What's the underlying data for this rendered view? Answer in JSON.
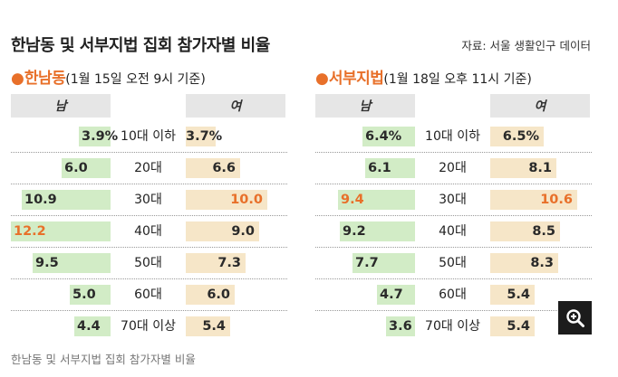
{
  "title": "한남동 및 서부지법 집회 참가자별 비율",
  "source": "자료: 서울 생활인구 데이터",
  "footer": "한남동 및 서부지법 집회 참가자별 비율",
  "colors": {
    "accent": "#e8702a",
    "male_bar": "#d2ecc6",
    "female_bar": "#f6e6c8",
    "header_bg": "#e6e6e6"
  },
  "chart_data": [
    {
      "type": "bar",
      "title": "한남동",
      "subtitle": "(1월 15일 오전 9시 기준)",
      "categories": [
        "10대 이하",
        "20대",
        "30대",
        "40대",
        "50대",
        "60대",
        "70대 이상"
      ],
      "series": [
        {
          "name": "남",
          "values": [
            3.9,
            6.0,
            10.9,
            12.2,
            9.5,
            5.0,
            4.4
          ],
          "labels": [
            "3.9%",
            "6.0",
            "10.9",
            "12.2",
            "9.5",
            "5.0",
            "4.4"
          ]
        },
        {
          "name": "여",
          "values": [
            3.7,
            6.6,
            10.0,
            9.0,
            7.3,
            6.0,
            5.4
          ],
          "labels": [
            "3.7%",
            "6.6",
            "10.0",
            "9.0",
            "7.3",
            "6.0",
            "5.4"
          ]
        }
      ],
      "highlight": {
        "남": 3,
        "여": 2
      },
      "unit": "%"
    },
    {
      "type": "bar",
      "title": "서부지법",
      "subtitle": "(1월 18일 오후 11시 기준)",
      "categories": [
        "10대 이하",
        "20대",
        "30대",
        "40대",
        "50대",
        "60대",
        "70대 이상"
      ],
      "series": [
        {
          "name": "남",
          "values": [
            6.4,
            6.1,
            9.4,
            9.2,
            7.7,
            4.7,
            3.6
          ],
          "labels": [
            "6.4%",
            "6.1",
            "9.4",
            "9.2",
            "7.7",
            "4.7",
            "3.6"
          ]
        },
        {
          "name": "여",
          "values": [
            6.5,
            8.1,
            10.6,
            8.5,
            8.3,
            5.4,
            5.4
          ],
          "labels": [
            "6.5%",
            "8.1",
            "10.6",
            "8.5",
            "8.3",
            "5.4",
            "5.4"
          ]
        }
      ],
      "highlight": {
        "남": 2,
        "여": 2
      },
      "unit": "%"
    }
  ]
}
